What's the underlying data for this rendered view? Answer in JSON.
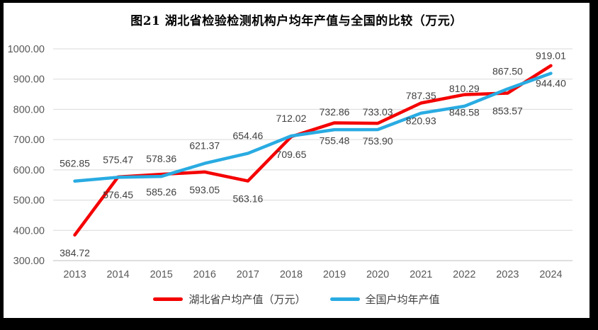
{
  "chart_data": {
    "type": "line",
    "title": "图21  湖北省检验检测机构户均年产值与全国的比较（万元）",
    "categories": [
      "2013",
      "2014",
      "2015",
      "2016",
      "2017",
      "2018",
      "2019",
      "2020",
      "2021",
      "2022",
      "2023",
      "2024"
    ],
    "series": [
      {
        "name": "湖北省户均产值（万元）",
        "color": "#F40000",
        "label_position": "below",
        "values": [
          384.72,
          576.45,
          585.26,
          593.05,
          563.16,
          709.65,
          755.48,
          753.9,
          820.93,
          848.58,
          853.57,
          944.4
        ]
      },
      {
        "name": "全国户均年产值",
        "color": "#29ABE2",
        "label_position": "above",
        "values": [
          562.85,
          575.47,
          578.36,
          621.37,
          654.46,
          712.02,
          732.86,
          733.03,
          787.35,
          810.29,
          867.5,
          919.01
        ]
      }
    ],
    "xlabel": "",
    "ylabel": "",
    "ylim": [
      300,
      1000
    ],
    "yticks": [
      300,
      400,
      500,
      600,
      700,
      800,
      900,
      1000
    ],
    "ytick_format": "two-decimals",
    "grid": "horizontal",
    "legend_position": "bottom",
    "colors": {
      "gridline": "#D9D9D9",
      "axis_line": "#BFBFBF",
      "tick_label": "#595959",
      "data_label": "#404040",
      "title": "#000000"
    }
  }
}
